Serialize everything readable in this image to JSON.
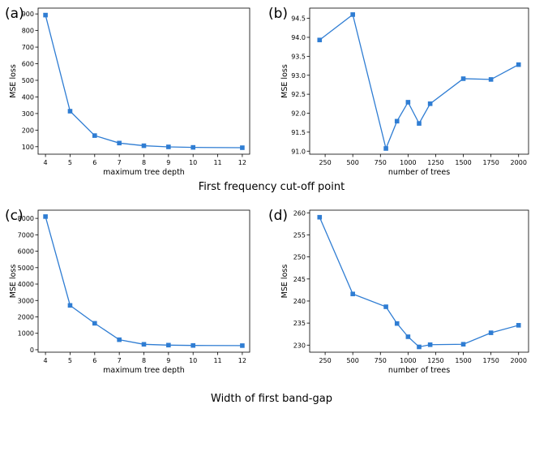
{
  "figure": {
    "captions": [
      "First frequency cut-off point",
      "Width of first band-gap"
    ]
  },
  "style": {
    "line_color": "#2f7dd3",
    "marker_color": "#2f7dd3",
    "axis_color": "#000000"
  },
  "chart_data": [
    {
      "panel_label": "(a)",
      "type": "line",
      "marker": "square",
      "xlabel": "maximum tree depth",
      "ylabel": "MSE loss",
      "xlim": [
        3.7,
        12.3
      ],
      "ylim": [
        55,
        935
      ],
      "xticks": [
        4,
        5,
        6,
        7,
        8,
        9,
        10,
        11,
        12
      ],
      "yticks": [
        100,
        200,
        300,
        400,
        500,
        600,
        700,
        800,
        900
      ],
      "x": [
        4,
        5,
        6,
        7,
        8,
        9,
        10,
        12
      ],
      "y": [
        893,
        314,
        167,
        122,
        106,
        99,
        96,
        94
      ],
      "grid": false
    },
    {
      "panel_label": "(b)",
      "type": "line",
      "marker": "square",
      "xlabel": "number of trees",
      "ylabel": "MSE loss",
      "xlim": [
        110,
        2090
      ],
      "ylim": [
        90.92,
        94.77
      ],
      "xticks": [
        250,
        500,
        750,
        1000,
        1250,
        1500,
        1750,
        2000
      ],
      "yticks": [
        "91.0",
        "91.5",
        "92.0",
        "92.5",
        "93.0",
        "93.5",
        "94.0",
        "94.5"
      ],
      "x": [
        200,
        500,
        800,
        900,
        1000,
        1100,
        1200,
        1500,
        1750,
        2000
      ],
      "y": [
        93.93,
        94.6,
        91.07,
        91.79,
        92.29,
        91.73,
        92.25,
        92.91,
        92.89,
        93.28
      ],
      "grid": false
    },
    {
      "panel_label": "(c)",
      "type": "line",
      "marker": "square",
      "xlabel": "maximum tree depth",
      "ylabel": "MSE loss",
      "xlim": [
        3.7,
        12.3
      ],
      "ylim": [
        -150,
        8500
      ],
      "xticks": [
        4,
        5,
        6,
        7,
        8,
        9,
        10,
        11,
        12
      ],
      "yticks": [
        0,
        1000,
        2000,
        3000,
        4000,
        5000,
        6000,
        7000,
        8000
      ],
      "x": [
        4,
        5,
        6,
        7,
        8,
        9,
        10,
        12
      ],
      "y": [
        8110,
        2700,
        1610,
        610,
        330,
        280,
        260,
        250
      ],
      "grid": false
    },
    {
      "panel_label": "(d)",
      "type": "line",
      "marker": "square",
      "xlabel": "number of trees",
      "ylabel": "MSE loss",
      "xlim": [
        110,
        2090
      ],
      "ylim": [
        228.4,
        260.6
      ],
      "xticks": [
        250,
        500,
        750,
        1000,
        1250,
        1500,
        1750,
        2000
      ],
      "yticks": [
        230,
        235,
        240,
        245,
        250,
        255,
        260
      ],
      "x": [
        200,
        500,
        800,
        900,
        1000,
        1100,
        1200,
        1500,
        1750,
        2000
      ],
      "y": [
        259.0,
        241.6,
        238.7,
        234.9,
        231.9,
        229.6,
        230.1,
        230.2,
        232.8,
        234.5
      ],
      "grid": false
    }
  ]
}
